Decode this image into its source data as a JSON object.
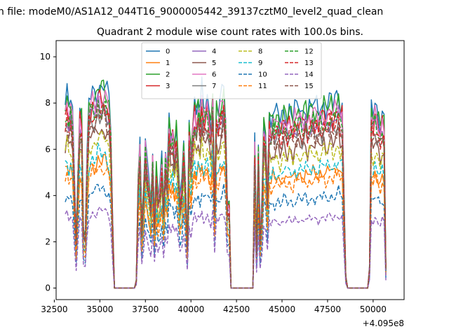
{
  "suptitle": "n file: modeM0/AS1A12_044T16_9000005442_39137cztM0_level2_quad_clean",
  "chart_data": {
    "type": "line",
    "title": "Quadrant 2 module wise count rates with 100.0s bins.",
    "xlabel": "",
    "ylabel": "",
    "x_offset_label": "+4.095e8",
    "xlim": [
      32600,
      51700
    ],
    "ylim": [
      -0.5,
      10.7
    ],
    "xticks": [
      32500,
      35000,
      37500,
      40000,
      42500,
      45000,
      47500,
      50000
    ],
    "yticks": [
      0,
      2,
      4,
      6,
      8,
      10
    ],
    "grid": false,
    "legend": {
      "placement": "top-center",
      "columns": 4
    },
    "x": [
      33100,
      33200,
      33300,
      33400,
      33500,
      33600,
      33700,
      33800,
      33900,
      34000,
      34100,
      34200,
      34300,
      34400,
      34500,
      34600,
      34700,
      34800,
      34900,
      35000,
      35100,
      35200,
      35300,
      35400,
      35500,
      35600,
      35700,
      35800,
      35900,
      36000,
      36100,
      36200,
      36300,
      36400,
      36500,
      36600,
      36700,
      36800,
      36900,
      37000,
      37100,
      37200,
      37300,
      37400,
      37500,
      37600,
      37700,
      37800,
      37900,
      38000,
      38100,
      38200,
      38300,
      38400,
      38500,
      38600,
      38700,
      38800,
      38900,
      39000,
      39100,
      39200,
      39300,
      39400,
      39500,
      39600,
      39700,
      39800,
      39900,
      40000,
      40100,
      40200,
      40300,
      40400,
      40500,
      40600,
      40700,
      40800,
      40900,
      41000,
      41100,
      41200,
      41300,
      41400,
      41500,
      41600,
      41700,
      41800,
      41900,
      42000,
      42100,
      42200,
      42300,
      42400,
      42500,
      42600,
      42700,
      42800,
      42900,
      43000,
      43100,
      43200,
      43300,
      43400,
      43500,
      43600,
      43700,
      43800,
      43900,
      44000,
      44100,
      44200,
      44300,
      44400,
      44500,
      44600,
      44700,
      44800,
      44900,
      45000,
      45100,
      45200,
      45300,
      45400,
      45500,
      45600,
      45700,
      45800,
      45900,
      46000,
      46100,
      46200,
      46300,
      46400,
      46500,
      46600,
      46700,
      46800,
      46900,
      47000,
      47100,
      47200,
      47300,
      47400,
      47500,
      47600,
      47700,
      47800,
      47900,
      48000,
      48100,
      48200,
      48300,
      48400,
      48500,
      48600,
      48700,
      48800,
      48900,
      49000,
      49100,
      49200,
      49300,
      49400,
      49500,
      49600,
      49700,
      49800,
      49900,
      50000,
      50100,
      50200,
      50300,
      50400,
      50500,
      50600,
      50700
    ],
    "profile": [
      0.89,
      0.94,
      0.87,
      0.92,
      0.85,
      0.55,
      0.24,
      0.6,
      0.87,
      0.84,
      0.28,
      0.26,
      0.63,
      0.9,
      0.93,
      0.96,
      0.94,
      0.95,
      1.0,
      0.98,
      0.97,
      0.99,
      0.97,
      0.94,
      0.92,
      0.79,
      0.35,
      0.0,
      0.0,
      0.0,
      0.0,
      0.0,
      0.0,
      0.0,
      0.0,
      0.0,
      0.0,
      0.0,
      0.0,
      0.04,
      0.55,
      0.72,
      0.3,
      0.48,
      0.72,
      0.6,
      0.52,
      0.43,
      0.67,
      0.33,
      0.59,
      0.45,
      0.51,
      0.63,
      0.4,
      0.66,
      0.56,
      0.84,
      0.75,
      0.8,
      0.69,
      0.78,
      0.63,
      0.44,
      0.5,
      0.71,
      0.52,
      0.23,
      0.81,
      0.67,
      0.82,
      0.91,
      0.84,
      0.92,
      0.85,
      0.96,
      0.87,
      0.9,
      0.93,
      0.86,
      0.8,
      0.97,
      0.42,
      0.88,
      0.85,
      0.9,
      0.93,
      0.98,
      0.86,
      0.42,
      0.42,
      0.0,
      0.0,
      0.0,
      0.0,
      0.0,
      0.0,
      0.0,
      0.0,
      0.0,
      0.0,
      0.0,
      0.0,
      0.0,
      0.72,
      0.2,
      0.7,
      0.25,
      0.43,
      0.83,
      0.77,
      0.47,
      0.84,
      0.8,
      0.86,
      0.82,
      0.85,
      0.86,
      0.81,
      0.84,
      0.88,
      0.86,
      0.83,
      0.87,
      0.85,
      0.82,
      0.87,
      0.86,
      0.89,
      0.88,
      0.85,
      0.87,
      0.9,
      0.84,
      0.88,
      0.87,
      0.9,
      0.87,
      0.89,
      0.86,
      0.9,
      0.88,
      0.91,
      0.87,
      0.89,
      0.9,
      0.92,
      0.88,
      0.91,
      0.92,
      0.95,
      0.89,
      0.9,
      0.45,
      0.06,
      0.0,
      0.0,
      0.0,
      0.0,
      0.0,
      0.0,
      0.0,
      0.0,
      0.0,
      0.0,
      0.0,
      0.0,
      0.1,
      0.88,
      0.85,
      0.9,
      0.87,
      0.84,
      0.8,
      0.86,
      0.82,
      0.1
    ],
    "series": [
      {
        "name": "0",
        "peak": 8.9,
        "color": "#1f77b4",
        "dash": false
      },
      {
        "name": "1",
        "peak": 5.6,
        "color": "#ff7f0e",
        "dash": false
      },
      {
        "name": "2",
        "peak": 8.7,
        "color": "#2ca02c",
        "dash": false
      },
      {
        "name": "3",
        "peak": 8.2,
        "color": "#d62728",
        "dash": false
      },
      {
        "name": "4",
        "peak": 8.0,
        "color": "#9467bd",
        "dash": false
      },
      {
        "name": "5",
        "peak": 7.0,
        "color": "#8c564b",
        "dash": false
      },
      {
        "name": "6",
        "peak": 8.4,
        "color": "#e377c2",
        "dash": false
      },
      {
        "name": "7",
        "peak": 7.6,
        "color": "#7f7f7f",
        "dash": false
      },
      {
        "name": "8",
        "peak": 6.6,
        "color": "#bcbd22",
        "dash": true
      },
      {
        "name": "9",
        "peak": 5.9,
        "color": "#17becf",
        "dash": true
      },
      {
        "name": "10",
        "peak": 4.4,
        "color": "#1f77b4",
        "dash": true
      },
      {
        "name": "11",
        "peak": 5.3,
        "color": "#ff7f0e",
        "dash": true
      },
      {
        "name": "12",
        "peak": 8.0,
        "color": "#2ca02c",
        "dash": true
      },
      {
        "name": "13",
        "peak": 7.8,
        "color": "#d62728",
        "dash": true
      },
      {
        "name": "14",
        "peak": 3.4,
        "color": "#9467bd",
        "dash": true
      },
      {
        "name": "15",
        "peak": 7.5,
        "color": "#8c564b",
        "dash": true
      }
    ]
  }
}
